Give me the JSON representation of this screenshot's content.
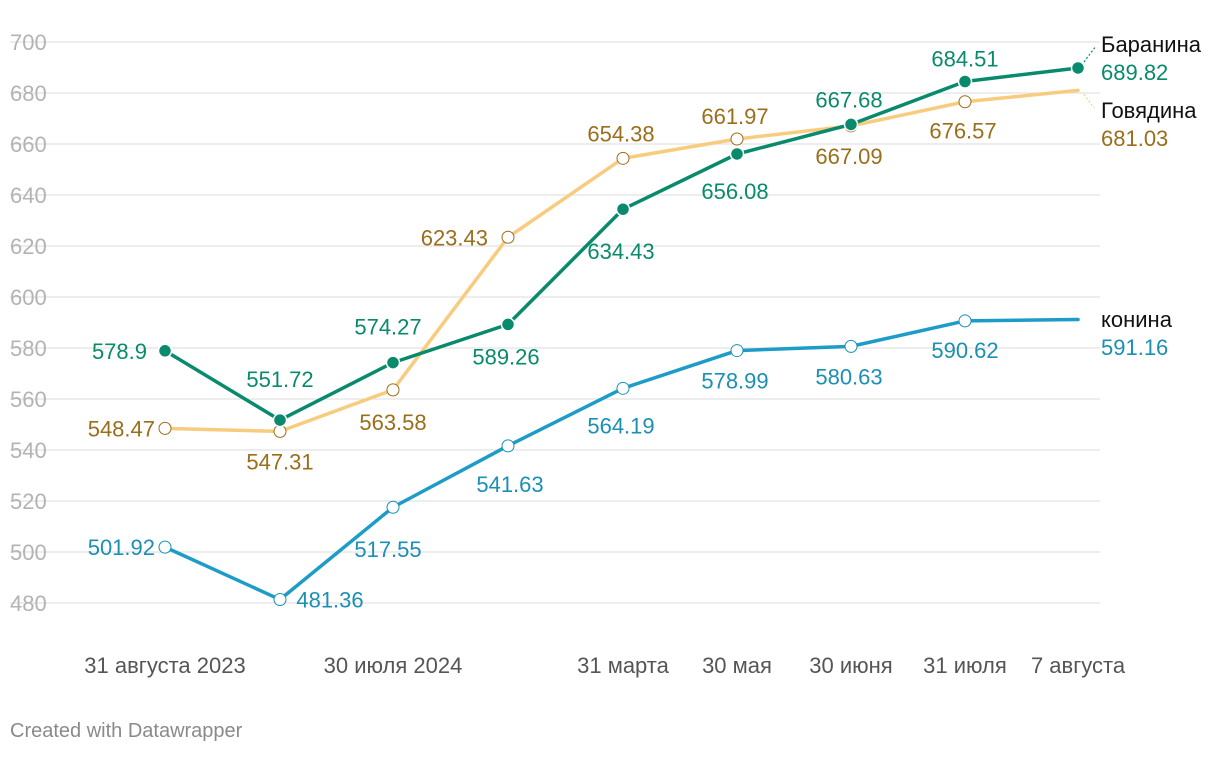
{
  "chart_data": {
    "type": "line",
    "title": "",
    "xlabel": "",
    "ylabel": "",
    "ylim": [
      480,
      700
    ],
    "yticks": [
      480,
      500,
      520,
      540,
      560,
      580,
      600,
      620,
      640,
      660,
      680,
      700
    ],
    "grid": true,
    "legend": "direct-labels-right",
    "x_tick_labels": [
      "31 августа 2023",
      "30 июля 2024",
      "31 марта",
      "30 мая",
      "30 июня",
      "31 июля",
      "7 августа"
    ],
    "series": [
      {
        "name": "Баранина",
        "color": "#0a8a6c",
        "label_color": "#0a8a6c",
        "marker": "filled",
        "values": [
          578.9,
          551.72,
          574.27,
          589.26,
          634.43,
          656.08,
          667.68,
          684.51,
          689.82
        ]
      },
      {
        "name": "Говядина",
        "color": "#f8cc7f",
        "label_color": "#9a6e1a",
        "marker": "hollow",
        "values": [
          548.47,
          547.31,
          563.58,
          623.43,
          654.38,
          661.97,
          667.09,
          676.57,
          681.03
        ]
      },
      {
        "name": "конина",
        "color": "#1e9cc8",
        "label_color": "#1b8fb4",
        "marker": "hollow",
        "values": [
          501.92,
          481.36,
          517.55,
          541.63,
          564.19,
          578.99,
          580.63,
          590.62,
          591.16
        ]
      }
    ]
  },
  "footer": {
    "credit": "Created with Datawrapper"
  }
}
